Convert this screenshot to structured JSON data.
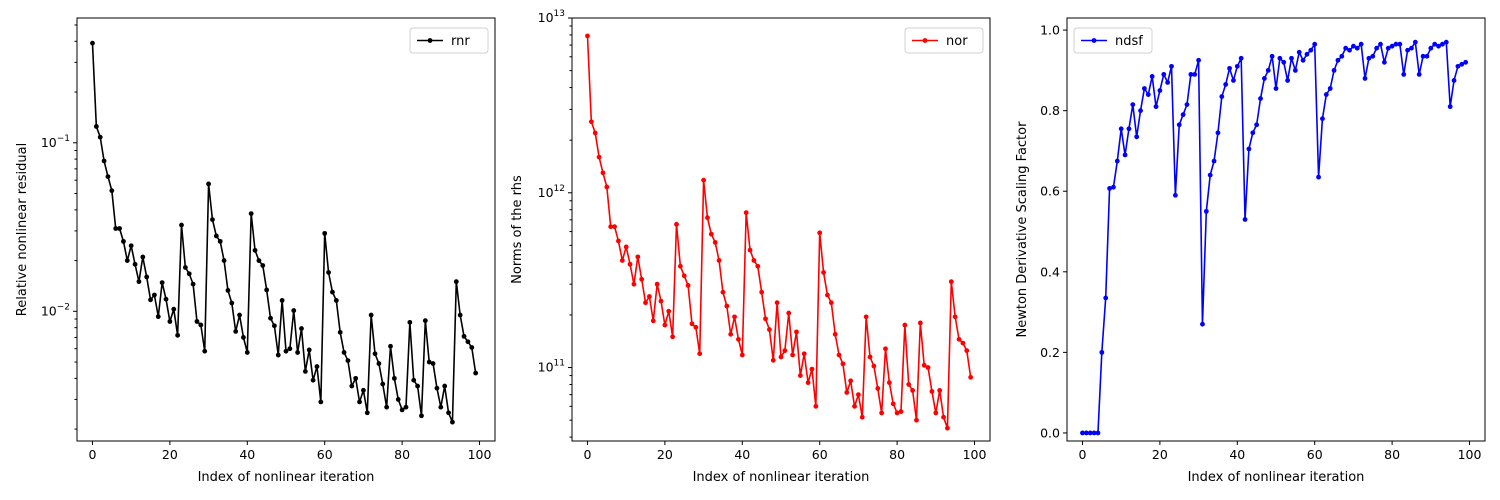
{
  "chart_data": [
    {
      "type": "line",
      "xlabel": "Index of nonlinear iteration",
      "ylabel": "Relative nonlinear residual",
      "yscale": "log",
      "xlim": [
        -4,
        104
      ],
      "ylim": [
        0.0017,
        0.55
      ],
      "xticks": [
        0,
        20,
        40,
        60,
        80,
        100
      ],
      "yticks": [
        {
          "value": 0.1,
          "base": "10",
          "exp": "−1"
        },
        {
          "value": 0.01,
          "base": "10",
          "exp": "−2"
        }
      ],
      "legend": "upper right",
      "series": [
        {
          "name": "rnr",
          "color": "#000000",
          "x": [
            0,
            1,
            2,
            3,
            4,
            5,
            6,
            7,
            8,
            9,
            10,
            11,
            12,
            13,
            14,
            15,
            16,
            17,
            18,
            19,
            20,
            21,
            22,
            23,
            24,
            25,
            26,
            27,
            28,
            29,
            30,
            31,
            32,
            33,
            34,
            35,
            36,
            37,
            38,
            39,
            40,
            41,
            42,
            43,
            44,
            45,
            46,
            47,
            48,
            49,
            50,
            51,
            52,
            53,
            54,
            55,
            56,
            57,
            58,
            59,
            60,
            61,
            62,
            63,
            64,
            65,
            66,
            67,
            68,
            69,
            70,
            71,
            72,
            73,
            74,
            75,
            76,
            77,
            78,
            79,
            80,
            81,
            82,
            83,
            84,
            85,
            86,
            87,
            88,
            89,
            90,
            91,
            92,
            93,
            94,
            95,
            96,
            97,
            98,
            99
          ],
          "values": [
            0.39,
            0.125,
            0.108,
            0.078,
            0.063,
            0.052,
            0.031,
            0.031,
            0.026,
            0.02,
            0.0245,
            0.019,
            0.015,
            0.021,
            0.016,
            0.0117,
            0.0125,
            0.0093,
            0.0148,
            0.0118,
            0.0087,
            0.0103,
            0.0072,
            0.0325,
            0.0182,
            0.0167,
            0.0145,
            0.0087,
            0.0083,
            0.0058,
            0.057,
            0.035,
            0.028,
            0.026,
            0.02,
            0.0133,
            0.0112,
            0.0076,
            0.0095,
            0.007,
            0.0057,
            0.038,
            0.023,
            0.02,
            0.0187,
            0.0134,
            0.0091,
            0.0082,
            0.0055,
            0.0116,
            0.0058,
            0.006,
            0.0101,
            0.0057,
            0.0079,
            0.0044,
            0.0059,
            0.0039,
            0.0047,
            0.0029,
            0.029,
            0.017,
            0.013,
            0.0116,
            0.0075,
            0.0057,
            0.0051,
            0.0036,
            0.004,
            0.0029,
            0.0034,
            0.0025,
            0.0095,
            0.0056,
            0.0049,
            0.0037,
            0.0027,
            0.0062,
            0.004,
            0.003,
            0.0026,
            0.0027,
            0.0086,
            0.0039,
            0.0036,
            0.0024,
            0.0088,
            0.005,
            0.0049,
            0.0035,
            0.0027,
            0.0036,
            0.0025,
            0.0022,
            0.015,
            0.0095,
            0.0071,
            0.0066,
            0.0061,
            0.0043
          ]
        }
      ]
    },
    {
      "type": "line",
      "xlabel": "Index of nonlinear iteration",
      "ylabel": "Norms of the rhs",
      "yscale": "log",
      "xlim": [
        -4,
        104
      ],
      "ylim": [
        38000000000.0,
        10000000000000.0
      ],
      "xticks": [
        0,
        20,
        40,
        60,
        80,
        100
      ],
      "yticks": [
        {
          "value": 10000000000000.0,
          "base": "10",
          "exp": "13"
        },
        {
          "value": 1000000000000.0,
          "base": "10",
          "exp": "12"
        },
        {
          "value": 100000000000.0,
          "base": "10",
          "exp": "11"
        }
      ],
      "legend": "upper right",
      "series": [
        {
          "name": "nor",
          "color": "#ff0000",
          "x": [
            0,
            1,
            2,
            3,
            4,
            5,
            6,
            7,
            8,
            9,
            10,
            11,
            12,
            13,
            14,
            15,
            16,
            17,
            18,
            19,
            20,
            21,
            22,
            23,
            24,
            25,
            26,
            27,
            28,
            29,
            30,
            31,
            32,
            33,
            34,
            35,
            36,
            37,
            38,
            39,
            40,
            41,
            42,
            43,
            44,
            45,
            46,
            47,
            48,
            49,
            50,
            51,
            52,
            53,
            54,
            55,
            56,
            57,
            58,
            59,
            60,
            61,
            62,
            63,
            64,
            65,
            66,
            67,
            68,
            69,
            70,
            71,
            72,
            73,
            74,
            75,
            76,
            77,
            78,
            79,
            80,
            81,
            82,
            83,
            84,
            85,
            86,
            87,
            88,
            89,
            90,
            91,
            92,
            93,
            94,
            95,
            96,
            97,
            98,
            99
          ],
          "values": [
            7900000000000.0,
            2550000000000.0,
            2200000000000.0,
            1600000000000.0,
            1300000000000.0,
            1080000000000.0,
            640000000000.0,
            640000000000.0,
            530000000000.0,
            410000000000.0,
            490000000000.0,
            390000000000.0,
            300000000000.0,
            430000000000.0,
            320000000000.0,
            235000000000.0,
            255000000000.0,
            185000000000.0,
            300000000000.0,
            240000000000.0,
            175000000000.0,
            210000000000.0,
            150000000000.0,
            660000000000.0,
            380000000000.0,
            335000000000.0,
            295000000000.0,
            178000000000.0,
            170000000000.0,
            120000000000.0,
            1180000000000.0,
            720000000000.0,
            580000000000.0,
            520000000000.0,
            410000000000.0,
            270000000000.0,
            225000000000.0,
            155000000000.0,
            195000000000.0,
            145000000000.0,
            118000000000.0,
            770000000000.0,
            470000000000.0,
            410000000000.0,
            380000000000.0,
            270000000000.0,
            190000000000.0,
            165000000000.0,
            110000000000.0,
            235000000000.0,
            115000000000.0,
            125000000000.0,
            205000000000.0,
            118000000000.0,
            160000000000.0,
            90000000000.0,
            120000000000.0,
            82000000000.0,
            98000000000.0,
            60000000000.0,
            590000000000.0,
            350000000000.0,
            260000000000.0,
            235000000000.0,
            155000000000.0,
            118000000000.0,
            105000000000.0,
            72000000000.0,
            84000000000.0,
            60000000000.0,
            70000000000.0,
            52000000000.0,
            195000000000.0,
            115000000000.0,
            102000000000.0,
            76000000000.0,
            55000000000.0,
            128000000000.0,
            82000000000.0,
            62000000000.0,
            55000000000.0,
            56000000000.0,
            175000000000.0,
            80000000000.0,
            74000000000.0,
            50000000000.0,
            180000000000.0,
            103000000000.0,
            100000000000.0,
            73000000000.0,
            55000000000.0,
            74000000000.0,
            52000000000.0,
            45000000000.0,
            310000000000.0,
            195000000000.0,
            145000000000.0,
            138000000000.0,
            125000000000.0,
            88000000000.0
          ]
        }
      ]
    },
    {
      "type": "line",
      "xlabel": "Index of nonlinear iteration",
      "ylabel": "Newton Derivative Scaling Factor",
      "yscale": "linear",
      "xlim": [
        -4,
        104
      ],
      "ylim": [
        -0.02,
        1.03
      ],
      "xticks": [
        0,
        20,
        40,
        60,
        80,
        100
      ],
      "yticks": [
        {
          "value": 0.0,
          "label": "0.0"
        },
        {
          "value": 0.2,
          "label": "0.2"
        },
        {
          "value": 0.4,
          "label": "0.4"
        },
        {
          "value": 0.6,
          "label": "0.6"
        },
        {
          "value": 0.8,
          "label": "0.8"
        },
        {
          "value": 1.0,
          "label": "1.0"
        }
      ],
      "legend": "upper left",
      "series": [
        {
          "name": "ndsf",
          "color": "#0000ff",
          "x": [
            0,
            1,
            2,
            3,
            4,
            5,
            6,
            7,
            8,
            9,
            10,
            11,
            12,
            13,
            14,
            15,
            16,
            17,
            18,
            19,
            20,
            21,
            22,
            23,
            24,
            25,
            26,
            27,
            28,
            29,
            30,
            31,
            32,
            33,
            34,
            35,
            36,
            37,
            38,
            39,
            40,
            41,
            42,
            43,
            44,
            45,
            46,
            47,
            48,
            49,
            50,
            51,
            52,
            53,
            54,
            55,
            56,
            57,
            58,
            59,
            60,
            61,
            62,
            63,
            64,
            65,
            66,
            67,
            68,
            69,
            70,
            71,
            72,
            73,
            74,
            75,
            76,
            77,
            78,
            79,
            80,
            81,
            82,
            83,
            84,
            85,
            86,
            87,
            88,
            89,
            90,
            91,
            92,
            93,
            94,
            95,
            96,
            97,
            98,
            99
          ],
          "values": [
            0.0,
            0.0,
            0.0,
            0.0,
            0.0,
            0.2,
            0.335,
            0.607,
            0.61,
            0.675,
            0.755,
            0.69,
            0.755,
            0.815,
            0.735,
            0.8,
            0.855,
            0.84,
            0.885,
            0.81,
            0.85,
            0.89,
            0.87,
            0.91,
            0.59,
            0.765,
            0.79,
            0.815,
            0.89,
            0.89,
            0.925,
            0.27,
            0.55,
            0.64,
            0.675,
            0.745,
            0.835,
            0.865,
            0.905,
            0.875,
            0.91,
            0.93,
            0.53,
            0.705,
            0.745,
            0.765,
            0.83,
            0.88,
            0.9,
            0.935,
            0.855,
            0.93,
            0.92,
            0.875,
            0.93,
            0.9,
            0.945,
            0.925,
            0.94,
            0.95,
            0.965,
            0.635,
            0.78,
            0.84,
            0.855,
            0.9,
            0.925,
            0.935,
            0.955,
            0.95,
            0.96,
            0.955,
            0.965,
            0.88,
            0.93,
            0.935,
            0.955,
            0.965,
            0.92,
            0.955,
            0.96,
            0.965,
            0.965,
            0.89,
            0.95,
            0.955,
            0.97,
            0.89,
            0.935,
            0.935,
            0.955,
            0.965,
            0.96,
            0.965,
            0.97,
            0.81,
            0.875,
            0.91,
            0.915,
            0.92
          ]
        }
      ]
    }
  ]
}
